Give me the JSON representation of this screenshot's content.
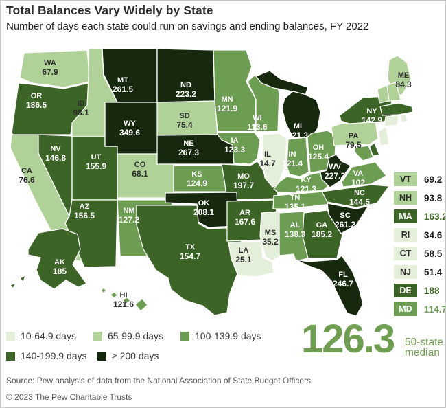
{
  "header": {
    "title": "Total Balances Vary Widely by State",
    "subtitle": "Number of days each state could run on savings and ending balances, FY 2022"
  },
  "chart_data": {
    "type": "heatmap",
    "subtype": "us-choropleth",
    "title": "Total Balances Vary Widely by State",
    "unit": "days",
    "median": 126.3,
    "bins": [
      {
        "label": "10-64.9 days",
        "min": 10,
        "max": 64.9,
        "color": "#e4efda"
      },
      {
        "label": "65-99.9 days",
        "min": 65,
        "max": 99.9,
        "color": "#b0d197"
      },
      {
        "label": "100-139.9 days",
        "min": 100,
        "max": 139.9,
        "color": "#6d9d53"
      },
      {
        "label": "140-199.9 days",
        "min": 140,
        "max": 199.9,
        "color": "#3c6426"
      },
      {
        "label": "≥ 200 days",
        "min": 200,
        "max": null,
        "color": "#16290f"
      }
    ],
    "states": [
      {
        "abbr": "WA",
        "value": 67.9
      },
      {
        "abbr": "OR",
        "value": 186.5
      },
      {
        "abbr": "CA",
        "value": 76.6
      },
      {
        "abbr": "NV",
        "value": 146.8
      },
      {
        "abbr": "ID",
        "value": 98.1
      },
      {
        "abbr": "MT",
        "value": 261.5
      },
      {
        "abbr": "WY",
        "value": 349.6
      },
      {
        "abbr": "UT",
        "value": 155.9
      },
      {
        "abbr": "AZ",
        "value": 156.5
      },
      {
        "abbr": "NM",
        "value": 127.2
      },
      {
        "abbr": "CO",
        "value": 68.1
      },
      {
        "abbr": "ND",
        "value": 223.2
      },
      {
        "abbr": "SD",
        "value": 75.4
      },
      {
        "abbr": "NE",
        "value": 267.3
      },
      {
        "abbr": "KS",
        "value": 124.9
      },
      {
        "abbr": "OK",
        "value": 208.1
      },
      {
        "abbr": "TX",
        "value": 154.7
      },
      {
        "abbr": "MN",
        "value": 121.9
      },
      {
        "abbr": "IA",
        "value": 123.3
      },
      {
        "abbr": "MO",
        "value": 197.7
      },
      {
        "abbr": "AR",
        "value": 167.6
      },
      {
        "abbr": "LA",
        "value": 25.1
      },
      {
        "abbr": "WI",
        "value": 113.6
      },
      {
        "abbr": "IL",
        "value": 14.7
      },
      {
        "abbr": "MS",
        "value": 35.2
      },
      {
        "abbr": "MI",
        "value": 221.3
      },
      {
        "abbr": "IN",
        "value": 121.4
      },
      {
        "abbr": "OH",
        "value": 125.4
      },
      {
        "abbr": "KY",
        "value": 121.3
      },
      {
        "abbr": "TN",
        "value": 135.1
      },
      {
        "abbr": "WV",
        "value": 227.2
      },
      {
        "abbr": "VA",
        "value": 102
      },
      {
        "abbr": "NC",
        "value": 144.5
      },
      {
        "abbr": "SC",
        "value": 261.2
      },
      {
        "abbr": "GA",
        "value": 185.2
      },
      {
        "abbr": "AL",
        "value": 138.3
      },
      {
        "abbr": "FL",
        "value": 246.7
      },
      {
        "abbr": "PA",
        "value": 79.5
      },
      {
        "abbr": "NY",
        "value": 142.9
      },
      {
        "abbr": "ME",
        "value": 84.3
      },
      {
        "abbr": "AK",
        "value": 185
      },
      {
        "abbr": "HI",
        "value": 121.6
      },
      {
        "abbr": "VT",
        "value": 69.2
      },
      {
        "abbr": "NH",
        "value": 93.8
      },
      {
        "abbr": "MA",
        "value": 163.2
      },
      {
        "abbr": "RI",
        "value": 34.6
      },
      {
        "abbr": "CT",
        "value": 58.5
      },
      {
        "abbr": "NJ",
        "value": 51.4
      },
      {
        "abbr": "DE",
        "value": 188
      },
      {
        "abbr": "MD",
        "value": 114.7
      }
    ]
  },
  "sidebar": {
    "order": [
      "VT",
      "NH",
      "MA",
      "RI",
      "CT",
      "NJ",
      "DE",
      "MD"
    ]
  },
  "median_caption": {
    "line1": "50-state",
    "line2": "median"
  },
  "footer": {
    "source": "Source: Pew analysis of data from the National Association of State Budget Officers",
    "copyright": "© 2023 The Pew Charitable Trusts"
  },
  "colors": {
    "accent": "#6f9e52",
    "label_dark": "#2d2d2d",
    "label_light": "#ffffff",
    "state_stroke": "#ffffff",
    "frame_border": "#c9c9c9"
  }
}
